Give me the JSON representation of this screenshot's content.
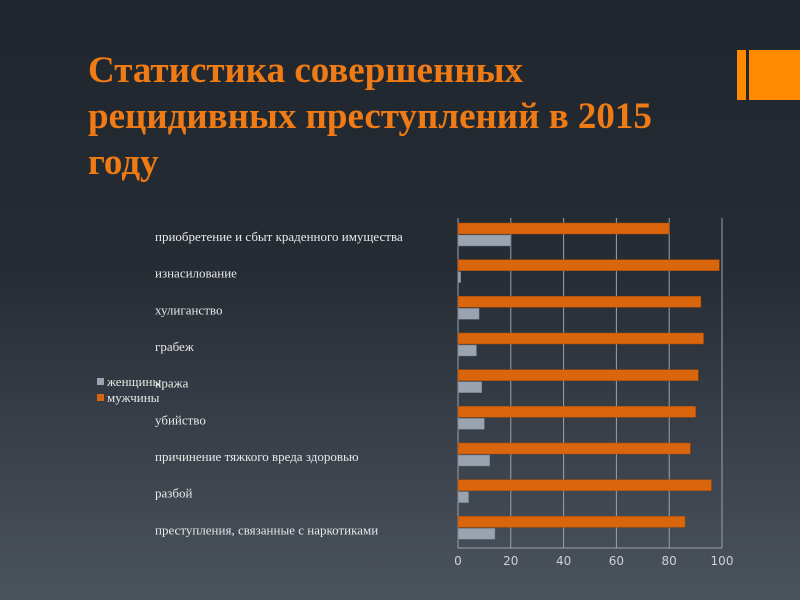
{
  "title": "Статистика совершенных рецидивных преступлений в 2015 году",
  "chart_data": {
    "type": "bar",
    "orientation": "horizontal",
    "categories": [
      "приобретение и сбыт краденного имущества",
      "изнасилование",
      "хулиганство",
      "грабеж",
      "кража",
      "убийство",
      "причинение тяжкого вреда здоровью",
      "разбой",
      "преступления, связанные с наркотиками"
    ],
    "series": [
      {
        "name": "мужчины",
        "color": "#d9650c",
        "values": [
          80,
          99,
          92,
          93,
          91,
          90,
          88,
          96,
          86
        ]
      },
      {
        "name": "женщины",
        "color": "#9aa3b0",
        "values": [
          20,
          1,
          8,
          7,
          9,
          10,
          12,
          4,
          14
        ]
      }
    ],
    "legend": [
      "женщины",
      "мужчины"
    ],
    "legend_position": "left",
    "xlim": [
      0,
      100
    ],
    "xticks": [
      "0",
      "20",
      "40",
      "60",
      "80",
      "100"
    ],
    "grid": true
  }
}
